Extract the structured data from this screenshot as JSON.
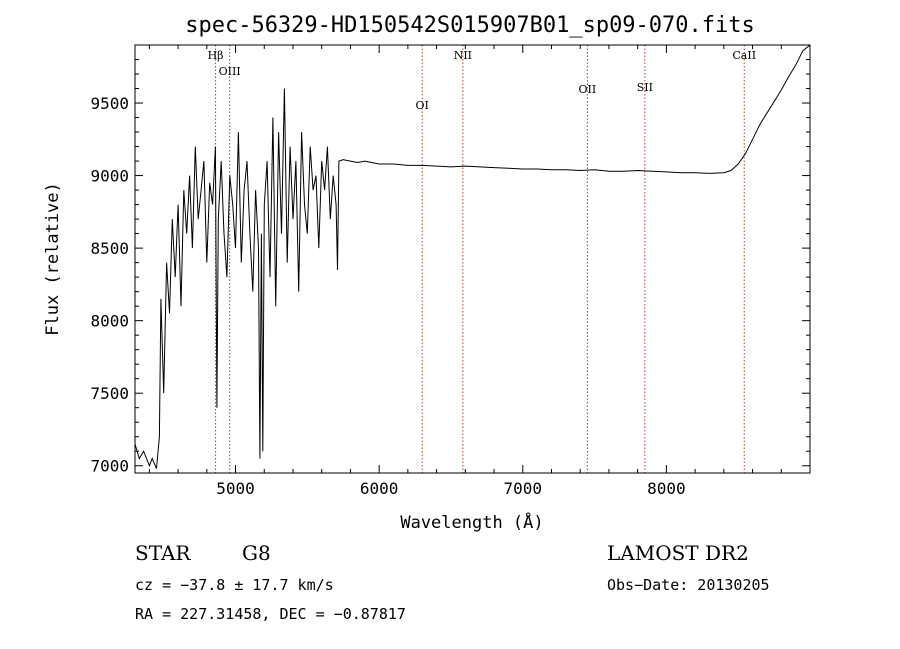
{
  "chart_data": {
    "type": "line",
    "title": "spec-56329-HD150542S015907B01_sp09-070.fits",
    "xlabel": "Wavelength (Å)",
    "ylabel": "Flux (relative)",
    "xlim": [
      4300,
      9000
    ],
    "ylim": [
      6950,
      9900
    ],
    "x_ticks": [
      5000,
      6000,
      7000,
      8000
    ],
    "x_tick_labels": [
      "5000",
      "6000",
      "7000",
      "8000"
    ],
    "y_ticks": [
      7000,
      7500,
      8000,
      8500,
      9000,
      9500
    ],
    "y_tick_labels": [
      "7000",
      "7500",
      "8000",
      "8500",
      "9000",
      "9500"
    ],
    "grid": false,
    "series": [
      {
        "x": [
          4300,
          4330,
          4360,
          4400,
          4420,
          4450,
          4470,
          4480,
          4500,
          4520,
          4540,
          4560,
          4580,
          4600,
          4620,
          4640,
          4660,
          4680,
          4700,
          4720,
          4740,
          4760,
          4780,
          4800,
          4820,
          4840,
          4860,
          4870,
          4880,
          4900,
          4920,
          4940,
          4960,
          4980,
          5000,
          5020,
          5040,
          5060,
          5080,
          5100,
          5120,
          5140,
          5160,
          5170,
          5180,
          5190,
          5200,
          5220,
          5240,
          5260,
          5280,
          5300,
          5320,
          5340,
          5360,
          5380,
          5400,
          5420,
          5440,
          5460,
          5480,
          5500,
          5520,
          5540,
          5560,
          5580,
          5600,
          5620,
          5640,
          5660,
          5680,
          5700,
          5710,
          5720,
          5750,
          5800,
          5850,
          5900,
          6000,
          6100,
          6200,
          6300,
          6400,
          6500,
          6600,
          6700,
          6800,
          6900,
          7000,
          7100,
          7200,
          7300,
          7400,
          7500,
          7600,
          7700,
          7800,
          7900,
          8000,
          8100,
          8200,
          8300,
          8400,
          8450,
          8500,
          8550,
          8600,
          8650,
          8700,
          8750,
          8800,
          8850,
          8900,
          8950,
          9000
        ],
        "y": [
          7150,
          7050,
          7100,
          7000,
          7050,
          6980,
          7200,
          8150,
          7500,
          8400,
          8050,
          8700,
          8300,
          8800,
          8100,
          8900,
          8600,
          9000,
          8500,
          9200,
          8700,
          8900,
          9100,
          8400,
          8950,
          8800,
          9200,
          7400,
          8700,
          9100,
          8600,
          8300,
          9000,
          8800,
          8500,
          9300,
          8400,
          8900,
          9100,
          8600,
          8200,
          8900,
          8500,
          7050,
          8600,
          7100,
          8800,
          9100,
          8300,
          9400,
          8100,
          9300,
          8600,
          9600,
          8400,
          9200,
          8700,
          9100,
          8200,
          9300,
          8800,
          8600,
          9200,
          8900,
          9000,
          8500,
          9100,
          8900,
          9200,
          8700,
          9000,
          8800,
          8350,
          9100,
          9110,
          9100,
          9090,
          9100,
          9080,
          9080,
          9070,
          9070,
          9065,
          9060,
          9065,
          9060,
          9055,
          9050,
          9045,
          9045,
          9040,
          9040,
          9035,
          9040,
          9030,
          9030,
          9035,
          9030,
          9025,
          9020,
          9020,
          9015,
          9020,
          9035,
          9080,
          9150,
          9250,
          9350,
          9430,
          9510,
          9590,
          9680,
          9760,
          9860,
          9900
        ]
      }
    ],
    "line_markers": [
      {
        "name": "Hβ",
        "x": 4861
      },
      {
        "name": "OIII",
        "x": 4959
      },
      {
        "name": "OI",
        "x": 6300
      },
      {
        "name": "NII",
        "x": 6583
      },
      {
        "name": "OII",
        "x": 7450
      },
      {
        "name": "SII",
        "x": 7850
      },
      {
        "name": "CaII",
        "x": 8542
      }
    ]
  },
  "info": {
    "class_label": "STAR",
    "subclass_label": "G8",
    "survey": "LAMOST DR2",
    "cz_text": "cz = −37.8 ± 17.7 km/s",
    "obs_date": "Obs−Date: 20130205",
    "coords": "RA = 227.31458, DEC =  −0.87817"
  },
  "colors": {
    "spectrum": "#000000",
    "marker_line": "#c0392b",
    "axes": "#000000"
  }
}
